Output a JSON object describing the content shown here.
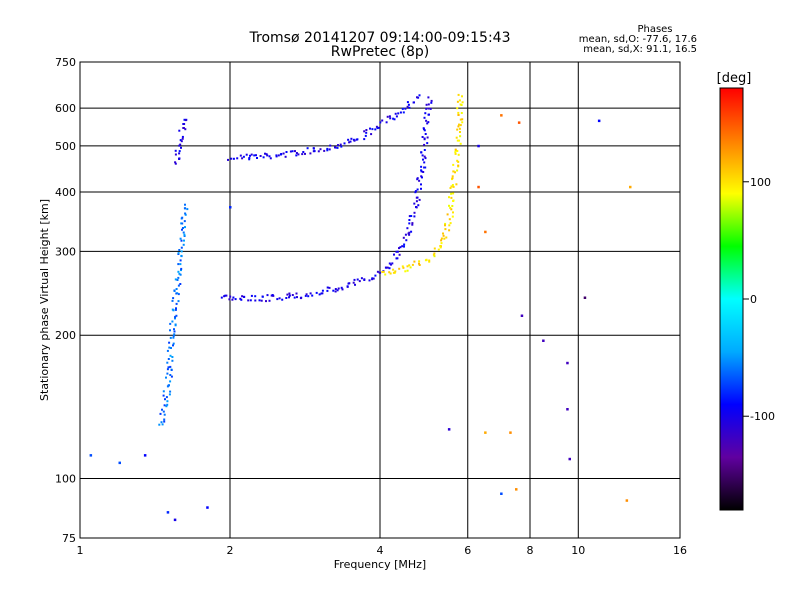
{
  "chart_data": {
    "type": "scatter",
    "title_line1": "Tromsø 20141207 09:14:00-09:15:43",
    "title_line2": "RwPretec (8p)",
    "phase_box": {
      "title": "Phases",
      "line_o": "mean, sd,O: -77.6, 17.6",
      "line_x": "mean, sd,X:  91.1, 16.5"
    },
    "xlabel": "Frequency [MHz]",
    "ylabel": "Stationary phase Virtual Height [km]",
    "x_scale": "log",
    "y_scale": "log",
    "xlim": [
      1,
      16
    ],
    "ylim": [
      75,
      750
    ],
    "x_ticks": [
      1,
      2,
      4,
      6,
      8,
      10,
      16
    ],
    "x_tick_labels": [
      "1",
      "2",
      "4",
      "6",
      "8",
      "10",
      "16"
    ],
    "y_ticks": [
      75,
      100,
      200,
      300,
      400,
      500,
      600,
      750
    ],
    "y_tick_labels": [
      "75",
      "100",
      "200",
      "300",
      "400",
      "500",
      "600",
      "750"
    ],
    "grid": true,
    "colorbar": {
      "label": "[deg]",
      "range": [
        -180,
        180
      ],
      "ticks": [
        100,
        0,
        -100
      ],
      "tick_labels": [
        "100",
        "0",
        "-100"
      ],
      "colors": [
        "#000000",
        "#6000a0",
        "#0000ff",
        "#00aaff",
        "#00ffff",
        "#00ff00",
        "#ffff00",
        "#ff8000",
        "#ff0000"
      ]
    },
    "traces": [
      {
        "phase": -100,
        "points": [
          [
            2.0,
            475
          ],
          [
            2.4,
            478
          ],
          [
            2.8,
            488
          ],
          [
            3.2,
            500
          ],
          [
            3.6,
            520
          ],
          [
            4.0,
            555
          ],
          [
            4.3,
            585
          ],
          [
            4.6,
            620
          ],
          [
            4.8,
            640
          ]
        ]
      },
      {
        "phase": -100,
        "points": [
          [
            1.9,
            240
          ],
          [
            2.3,
            240
          ],
          [
            2.8,
            244
          ],
          [
            3.3,
            252
          ],
          [
            3.8,
            265
          ],
          [
            4.2,
            285
          ],
          [
            4.5,
            320
          ],
          [
            4.7,
            380
          ],
          [
            4.85,
            460
          ],
          [
            4.95,
            560
          ],
          [
            5.0,
            640
          ]
        ]
      },
      {
        "phase": -60,
        "points": [
          [
            1.45,
            130
          ],
          [
            1.5,
            160
          ],
          [
            1.52,
            200
          ],
          [
            1.55,
            240
          ],
          [
            1.58,
            280
          ],
          [
            1.6,
            330
          ],
          [
            1.62,
            380
          ]
        ]
      },
      {
        "phase": -100,
        "points": [
          [
            1.55,
            460
          ],
          [
            1.57,
            500
          ],
          [
            1.6,
            540
          ],
          [
            1.62,
            580
          ]
        ]
      },
      {
        "phase": 100,
        "points": [
          [
            4.0,
            270
          ],
          [
            4.5,
            278
          ],
          [
            5.0,
            290
          ],
          [
            5.3,
            310
          ],
          [
            5.5,
            360
          ],
          [
            5.6,
            420
          ],
          [
            5.7,
            500
          ],
          [
            5.75,
            580
          ],
          [
            5.8,
            650
          ]
        ]
      }
    ],
    "scatter": [
      {
        "x": 1.05,
        "y": 112,
        "phase": -70
      },
      {
        "x": 1.2,
        "y": 108,
        "phase": -70
      },
      {
        "x": 1.35,
        "y": 112,
        "phase": -90
      },
      {
        "x": 1.5,
        "y": 85,
        "phase": -80
      },
      {
        "x": 1.55,
        "y": 82,
        "phase": -100
      },
      {
        "x": 1.8,
        "y": 87,
        "phase": -90
      },
      {
        "x": 2.0,
        "y": 372,
        "phase": -80
      },
      {
        "x": 6.3,
        "y": 500,
        "phase": -100
      },
      {
        "x": 6.3,
        "y": 410,
        "phase": 150
      },
      {
        "x": 6.5,
        "y": 330,
        "phase": 140
      },
      {
        "x": 7.0,
        "y": 580,
        "phase": 140
      },
      {
        "x": 7.6,
        "y": 560,
        "phase": 150
      },
      {
        "x": 7.7,
        "y": 220,
        "phase": -120
      },
      {
        "x": 8.5,
        "y": 195,
        "phase": -120
      },
      {
        "x": 9.5,
        "y": 175,
        "phase": -120
      },
      {
        "x": 9.5,
        "y": 140,
        "phase": -120
      },
      {
        "x": 7.3,
        "y": 125,
        "phase": 130
      },
      {
        "x": 6.5,
        "y": 125,
        "phase": 120
      },
      {
        "x": 5.5,
        "y": 127,
        "phase": -110
      },
      {
        "x": 9.6,
        "y": 110,
        "phase": -120
      },
      {
        "x": 7.0,
        "y": 93,
        "phase": -70
      },
      {
        "x": 7.5,
        "y": 95,
        "phase": 130
      },
      {
        "x": 11.0,
        "y": 565,
        "phase": -90
      },
      {
        "x": 12.5,
        "y": 90,
        "phase": 130
      },
      {
        "x": 12.7,
        "y": 410,
        "phase": 120
      },
      {
        "x": 10.3,
        "y": 240,
        "phase": -150
      }
    ]
  }
}
